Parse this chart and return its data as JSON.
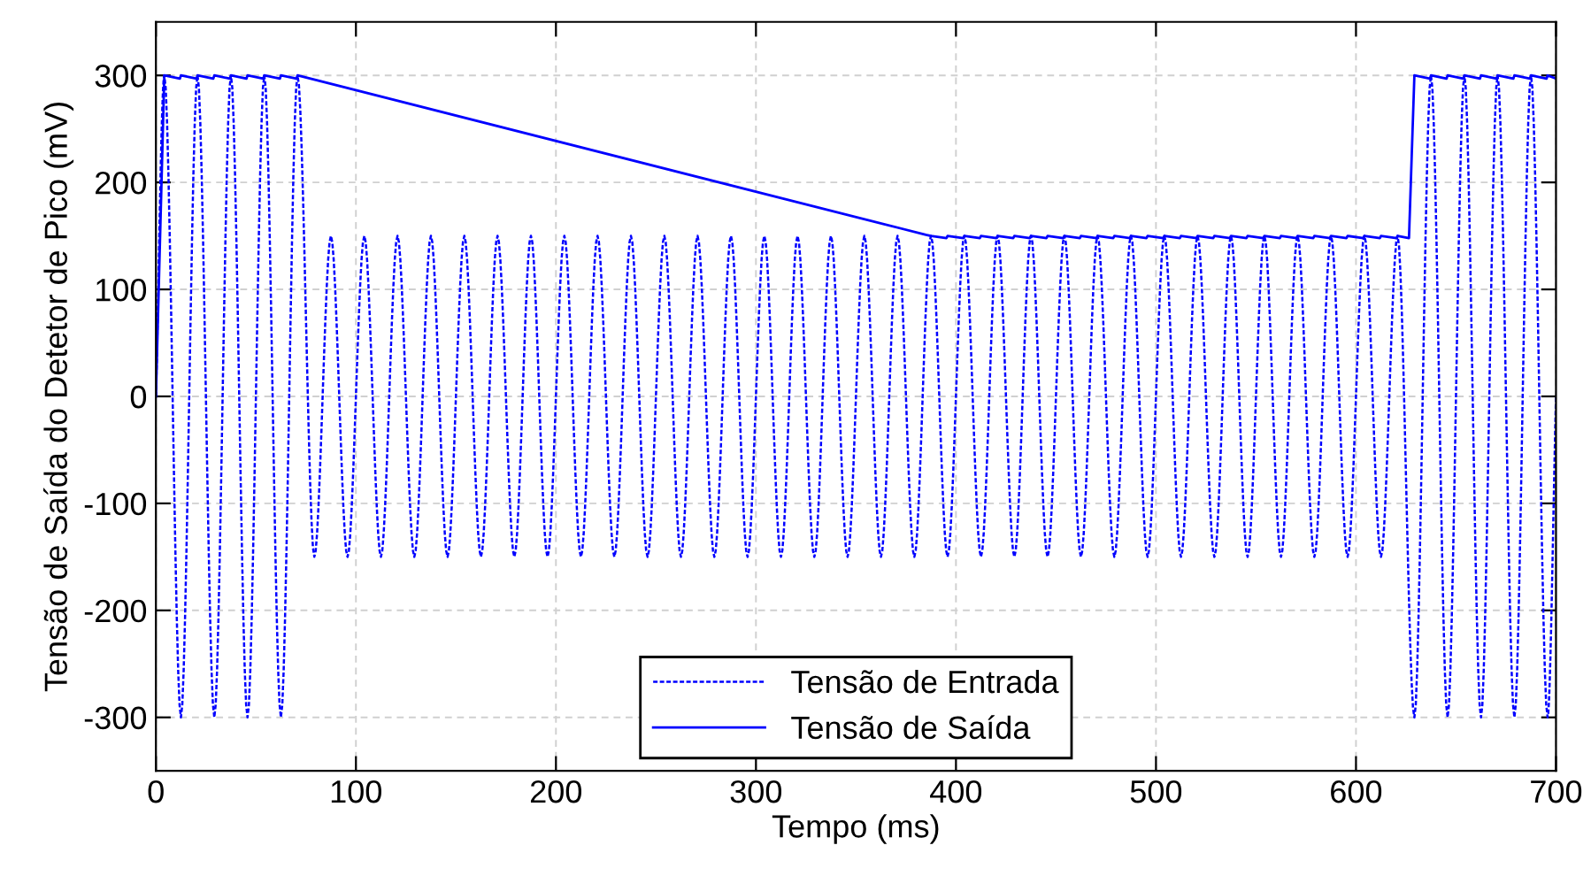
{
  "chart_data": {
    "type": "line",
    "xlabel": "Tempo (ms)",
    "ylabel": "Tensão de Saída do Detetor de Pico (mV)",
    "xlim": [
      0,
      700
    ],
    "ylim": [
      -350,
      350
    ],
    "xticks": [
      0,
      100,
      200,
      300,
      400,
      500,
      600,
      700
    ],
    "yticks": [
      -300,
      -200,
      -100,
      0,
      100,
      200,
      300
    ],
    "grid": true,
    "legend": "bottom",
    "marker": "none",
    "series": [
      {
        "name": "Tensão de Entrada",
        "color": "#0000ff",
        "line_style": "dashed",
        "x": [
          0,
          4.2,
          12.5,
          20.8,
          29.2,
          37.5,
          45.8,
          54.2,
          62.5,
          70.8,
          79.2,
          87.5,
          95.8,
          104.2,
          112.5,
          120.8,
          129.2,
          137.5,
          145.8,
          154.2,
          162.5,
          170.8,
          179.2,
          187.5,
          195.8,
          204.2,
          212.5,
          220.8,
          229.2,
          237.5,
          245.8,
          254.2,
          262.5,
          270.8,
          279.2,
          287.5,
          295.8,
          304.2,
          312.5,
          320.8,
          329.2,
          337.5,
          345.8,
          354.2,
          362.5,
          370.8,
          379.2,
          387.5,
          395.8,
          404.2,
          412.5,
          420.8,
          429.2,
          437.5,
          445.8,
          454.2,
          462.5,
          470.8,
          479.2,
          487.5,
          495.8,
          504.2,
          512.5,
          520.8,
          529.2,
          537.5,
          545.8,
          554.2,
          562.5,
          570.8,
          579.2,
          587.5,
          595.8,
          604.2,
          612.5,
          620.8,
          629.2,
          637.5,
          645.8,
          654.2,
          662.5,
          670.8,
          679.2,
          687.5,
          695.8,
          700
        ],
        "values": [
          0,
          300,
          -300,
          300,
          -300,
          300,
          -300,
          300,
          -300,
          300,
          -150,
          150,
          -150,
          150,
          -150,
          150,
          -150,
          150,
          -150,
          150,
          -150,
          150,
          -150,
          150,
          -150,
          150,
          -150,
          150,
          -150,
          150,
          -150,
          150,
          -150,
          150,
          -150,
          150,
          -150,
          150,
          -150,
          150,
          -150,
          150,
          -150,
          150,
          -150,
          150,
          -150,
          150,
          -150,
          150,
          -150,
          150,
          -150,
          150,
          -150,
          150,
          -150,
          150,
          -150,
          150,
          -150,
          150,
          -150,
          150,
          -150,
          150,
          -150,
          150,
          -150,
          150,
          -150,
          150,
          -150,
          150,
          -150,
          150,
          -300,
          300,
          -300,
          300,
          -300,
          300,
          -300,
          300,
          -300,
          0
        ]
      },
      {
        "name": "Tensão de Saída",
        "color": "#0000ff",
        "line_style": "solid",
        "x": [
          0,
          4.2,
          12,
          12.5,
          20.3,
          20.8,
          28.7,
          29.2,
          37,
          37.5,
          45.3,
          45.8,
          53.7,
          54.2,
          62,
          62.5,
          70.3,
          70.8,
          385,
          387.5,
          395.3,
          395.8,
          403.7,
          404.2,
          412,
          412.5,
          420.3,
          420.8,
          428.7,
          429.2,
          437,
          437.5,
          445.3,
          445.8,
          453.7,
          454.2,
          462,
          462.5,
          470.3,
          470.8,
          478.7,
          479.2,
          487,
          487.5,
          495.3,
          495.8,
          503.7,
          504.2,
          512,
          512.5,
          520.3,
          520.8,
          528.7,
          529.2,
          537,
          537.5,
          545.3,
          545.8,
          553.7,
          554.2,
          562,
          562.5,
          570.3,
          570.8,
          578.7,
          579.2,
          587,
          587.5,
          595.3,
          595.8,
          603.7,
          604.2,
          612,
          612.5,
          620.3,
          620.8,
          626.5,
          629.2,
          637,
          637.5,
          645.3,
          645.8,
          653.7,
          654.2,
          662,
          662.5,
          670.3,
          670.8,
          678.7,
          679.2,
          687,
          687.5,
          695.3,
          695.8,
          700
        ],
        "values": [
          0,
          300,
          297,
          300,
          297,
          300,
          297,
          300,
          297,
          300,
          297,
          300,
          297,
          300,
          297,
          300,
          297,
          300,
          151,
          150,
          148,
          150,
          148,
          150,
          148,
          150,
          148,
          150,
          148,
          150,
          148,
          150,
          148,
          150,
          148,
          150,
          148,
          150,
          148,
          150,
          148,
          150,
          148,
          150,
          148,
          150,
          148,
          150,
          148,
          150,
          148,
          150,
          148,
          150,
          148,
          150,
          148,
          150,
          148,
          150,
          148,
          150,
          148,
          150,
          148,
          150,
          148,
          150,
          148,
          150,
          148,
          150,
          148,
          150,
          148,
          150,
          148,
          300,
          297,
          300,
          297,
          300,
          297,
          300,
          297,
          300,
          297,
          300,
          297,
          300,
          297,
          300,
          297,
          300,
          297
        ]
      }
    ]
  }
}
